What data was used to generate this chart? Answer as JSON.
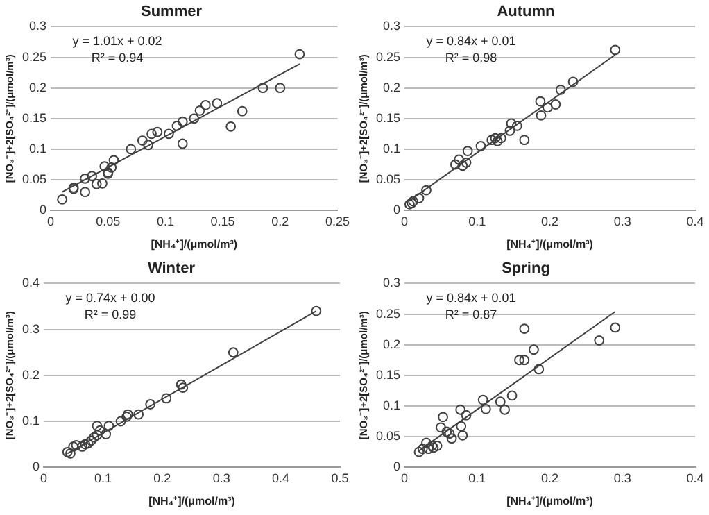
{
  "chart_data": [
    {
      "type": "scatter",
      "title": "Summer",
      "xlabel": "[NH₄⁺]/(μmol/m³)",
      "ylabel": "[NO₃⁻]+2[SO₄²⁻]/(μmol/m³)",
      "annotations": [
        "y = 1.01x + 0.02",
        "R² = 0.94"
      ],
      "grid": "y",
      "legend": false,
      "marker": "circle",
      "xlim": [
        0,
        0.25
      ],
      "xticks": [
        0,
        0.05,
        0.1,
        0.15,
        0.2,
        0.25
      ],
      "ylim": [
        0,
        0.3
      ],
      "yticks": [
        0,
        0.05,
        0.1,
        0.15,
        0.2,
        0.25,
        0.3
      ],
      "series": [
        {
          "color": "#404040",
          "x": [
            0.01,
            0.02,
            0.02,
            0.03,
            0.03,
            0.036,
            0.04,
            0.045,
            0.047,
            0.05,
            0.05,
            0.053,
            0.055,
            0.07,
            0.08,
            0.085,
            0.088,
            0.093,
            0.103,
            0.11,
            0.115,
            0.115,
            0.125,
            0.13,
            0.135,
            0.145,
            0.157,
            0.167,
            0.185,
            0.2,
            0.217
          ],
          "values": [
            0.018,
            0.035,
            0.037,
            0.052,
            0.03,
            0.056,
            0.043,
            0.044,
            0.072,
            0.06,
            0.062,
            0.07,
            0.082,
            0.1,
            0.114,
            0.107,
            0.125,
            0.128,
            0.125,
            0.138,
            0.145,
            0.109,
            0.15,
            0.163,
            0.172,
            0.175,
            0.137,
            0.162,
            0.2,
            0.2,
            0.255
          ]
        },
        {
          "type": "line",
          "marker": "none",
          "color": "#404040",
          "x": [
            0.01,
            0.217
          ],
          "values": [
            0.03,
            0.239
          ]
        }
      ]
    },
    {
      "type": "scatter",
      "title": "Autumn",
      "xlabel": "[NH₄⁺]/(μmol/m³)",
      "ylabel": "[NO₃⁻]+2[SO₄²⁻]/(μmol/m³)",
      "annotations": [
        "y = 0.84x + 0.01",
        "R² = 0.98"
      ],
      "grid": "y",
      "legend": false,
      "marker": "circle",
      "xlim": [
        0,
        0.4
      ],
      "xticks": [
        0,
        0.1,
        0.2,
        0.3,
        0.4
      ],
      "ylim": [
        0,
        0.3
      ],
      "yticks": [
        0,
        0.05,
        0.1,
        0.15,
        0.2,
        0.25,
        0.3
      ],
      "series": [
        {
          "color": "#404040",
          "x": [
            0.007,
            0.01,
            0.012,
            0.02,
            0.03,
            0.07,
            0.075,
            0.08,
            0.085,
            0.087,
            0.105,
            0.12,
            0.125,
            0.128,
            0.133,
            0.145,
            0.147,
            0.155,
            0.165,
            0.187,
            0.188,
            0.197,
            0.208,
            0.215,
            0.232,
            0.29
          ],
          "values": [
            0.01,
            0.012,
            0.015,
            0.02,
            0.033,
            0.075,
            0.083,
            0.073,
            0.078,
            0.097,
            0.105,
            0.115,
            0.118,
            0.113,
            0.118,
            0.13,
            0.142,
            0.138,
            0.115,
            0.178,
            0.155,
            0.168,
            0.173,
            0.197,
            0.21,
            0.262
          ]
        },
        {
          "type": "line",
          "marker": "none",
          "color": "#404040",
          "x": [
            0.007,
            0.29
          ],
          "values": [
            0.016,
            0.254
          ]
        }
      ]
    },
    {
      "type": "scatter",
      "title": "Winter",
      "xlabel": "[NH₄⁺]/(μmol/m³)",
      "ylabel": "[NO₃⁻]+2[SO₄²⁻]/(μmol/m³)",
      "annotations": [
        "y = 0.74x + 0.00",
        "R² = 0.99"
      ],
      "grid": "y",
      "legend": false,
      "marker": "circle",
      "xlim": [
        0,
        0.5
      ],
      "xticks": [
        0,
        0.1,
        0.2,
        0.3,
        0.4,
        0.5
      ],
      "ylim": [
        0,
        0.4
      ],
      "yticks": [
        0,
        0.1,
        0.2,
        0.3,
        0.4
      ],
      "series": [
        {
          "color": "#404040",
          "x": [
            0.04,
            0.045,
            0.05,
            0.055,
            0.065,
            0.07,
            0.075,
            0.08,
            0.085,
            0.09,
            0.09,
            0.095,
            0.105,
            0.11,
            0.13,
            0.14,
            0.142,
            0.16,
            0.18,
            0.207,
            0.232,
            0.235,
            0.32,
            0.46
          ],
          "values": [
            0.033,
            0.03,
            0.045,
            0.048,
            0.045,
            0.05,
            0.052,
            0.058,
            0.065,
            0.07,
            0.09,
            0.08,
            0.072,
            0.09,
            0.1,
            0.11,
            0.115,
            0.115,
            0.137,
            0.15,
            0.18,
            0.173,
            0.25,
            0.34
          ]
        },
        {
          "type": "line",
          "marker": "none",
          "color": "#404040",
          "x": [
            0.04,
            0.46
          ],
          "values": [
            0.03,
            0.34
          ]
        }
      ]
    },
    {
      "type": "scatter",
      "title": "Spring",
      "xlabel": "[NH₄⁺]/(μmol/m³)",
      "ylabel": "[NO₃⁻]+2[SO₄²⁻]/(μmol/m³)",
      "annotations": [
        "y = 0.84x + 0.01",
        "R² = 0.87"
      ],
      "grid": "y",
      "legend": false,
      "marker": "circle",
      "xlim": [
        0,
        0.4
      ],
      "xticks": [
        0,
        0.1,
        0.2,
        0.3,
        0.4
      ],
      "ylim": [
        0,
        0.3
      ],
      "yticks": [
        0,
        0.05,
        0.1,
        0.15,
        0.2,
        0.25,
        0.3
      ],
      "series": [
        {
          "color": "#404040",
          "x": [
            0.02,
            0.025,
            0.03,
            0.033,
            0.038,
            0.04,
            0.045,
            0.05,
            0.053,
            0.058,
            0.062,
            0.065,
            0.077,
            0.078,
            0.08,
            0.085,
            0.108,
            0.112,
            0.132,
            0.138,
            0.148,
            0.158,
            0.165,
            0.165,
            0.178,
            0.185,
            0.268,
            0.29
          ],
          "values": [
            0.025,
            0.03,
            0.04,
            0.03,
            0.035,
            0.032,
            0.035,
            0.065,
            0.082,
            0.058,
            0.055,
            0.047,
            0.094,
            0.067,
            0.052,
            0.085,
            0.11,
            0.095,
            0.107,
            0.094,
            0.117,
            0.175,
            0.175,
            0.226,
            0.192,
            0.16,
            0.207,
            0.228
          ]
        },
        {
          "type": "line",
          "marker": "none",
          "color": "#404040",
          "x": [
            0.02,
            0.29
          ],
          "values": [
            0.027,
            0.254
          ]
        }
      ]
    }
  ]
}
